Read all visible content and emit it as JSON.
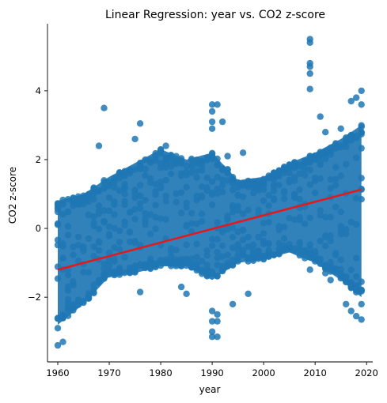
{
  "chart_data": {
    "type": "scatter",
    "title": "Linear Regression: year vs. CO2 z-score",
    "xlabel": "year",
    "ylabel": "CO2 z-score",
    "xlim": [
      1958.0,
      2021.2
    ],
    "ylim": [
      -3.88,
      5.95
    ],
    "xticks": [
      1960,
      1970,
      1980,
      1990,
      2000,
      2010,
      2020
    ],
    "yticks": [
      -2,
      0,
      2,
      4
    ],
    "xticklabels": [
      "1960",
      "1970",
      "1980",
      "1990",
      "2000",
      "2010",
      "2020"
    ],
    "yticklabels": [
      "−2",
      "0",
      "2",
      "4"
    ],
    "grid": false,
    "series": [
      {
        "kind": "scatter",
        "color": "#1f77b4",
        "note_points": "dense scatter, one column of points per year 1960-2019",
        "band_by_year": [
          {
            "x": 1960,
            "low": -2.8,
            "high": 0.8
          },
          {
            "x": 1965,
            "low": -2.2,
            "high": 1.0
          },
          {
            "x": 1970,
            "low": -1.4,
            "high": 1.5
          },
          {
            "x": 1975,
            "low": -1.3,
            "high": 1.9
          },
          {
            "x": 1980,
            "low": -1.1,
            "high": 2.3
          },
          {
            "x": 1985,
            "low": -1.1,
            "high": 2.0
          },
          {
            "x": 1990,
            "low": -1.5,
            "high": 2.2
          },
          {
            "x": 1995,
            "low": -1.0,
            "high": 1.4
          },
          {
            "x": 2000,
            "low": -0.9,
            "high": 1.5
          },
          {
            "x": 2005,
            "low": -0.7,
            "high": 1.9
          },
          {
            "x": 2010,
            "low": -1.0,
            "high": 2.2
          },
          {
            "x": 2015,
            "low": -1.5,
            "high": 2.6
          },
          {
            "x": 2019,
            "low": -2.0,
            "high": 3.0
          }
        ],
        "outliers": [
          {
            "x": 1960,
            "y": -3.4
          },
          {
            "x": 1961,
            "y": -3.3
          },
          {
            "x": 1960,
            "y": -2.9
          },
          {
            "x": 1969,
            "y": 3.5
          },
          {
            "x": 1968,
            "y": 2.4
          },
          {
            "x": 1976,
            "y": 3.05
          },
          {
            "x": 1975,
            "y": 2.6
          },
          {
            "x": 1981,
            "y": 2.4
          },
          {
            "x": 1976,
            "y": -1.85
          },
          {
            "x": 1984,
            "y": -1.7
          },
          {
            "x": 1985,
            "y": -1.9
          },
          {
            "x": 1990,
            "y": 3.6
          },
          {
            "x": 1991,
            "y": 3.6
          },
          {
            "x": 1990,
            "y": 3.4
          },
          {
            "x": 1990,
            "y": 3.1
          },
          {
            "x": 1990,
            "y": 2.9
          },
          {
            "x": 1992,
            "y": 3.1
          },
          {
            "x": 1993,
            "y": 2.1
          },
          {
            "x": 1990,
            "y": -2.4
          },
          {
            "x": 1990,
            "y": -2.7
          },
          {
            "x": 1990,
            "y": -3.0
          },
          {
            "x": 1990,
            "y": -3.15
          },
          {
            "x": 1991,
            "y": -2.7
          },
          {
            "x": 1991,
            "y": -3.15
          },
          {
            "x": 1991,
            "y": -2.5
          },
          {
            "x": 1994,
            "y": -2.2
          },
          {
            "x": 1997,
            "y": -1.9
          },
          {
            "x": 1996,
            "y": 2.2
          },
          {
            "x": 2009,
            "y": 5.5
          },
          {
            "x": 2009,
            "y": 5.4
          },
          {
            "x": 2009,
            "y": 4.8
          },
          {
            "x": 2009,
            "y": 4.7
          },
          {
            "x": 2009,
            "y": 4.5
          },
          {
            "x": 2009,
            "y": 4.05
          },
          {
            "x": 2011,
            "y": 3.25
          },
          {
            "x": 2012,
            "y": 2.8
          },
          {
            "x": 2009,
            "y": -1.2
          },
          {
            "x": 2012,
            "y": -1.3
          },
          {
            "x": 2013,
            "y": -1.5
          },
          {
            "x": 2016,
            "y": -2.2
          },
          {
            "x": 2017,
            "y": -2.4
          },
          {
            "x": 2018,
            "y": -2.55
          },
          {
            "x": 2019,
            "y": -2.65
          },
          {
            "x": 2019,
            "y": -2.2
          },
          {
            "x": 2017,
            "y": 3.7
          },
          {
            "x": 2018,
            "y": 3.8
          },
          {
            "x": 2019,
            "y": 4.0
          },
          {
            "x": 2019,
            "y": 3.6
          },
          {
            "x": 2015,
            "y": 2.9
          }
        ]
      },
      {
        "kind": "regression-line",
        "color": "#e31a1c",
        "x": [
          1960,
          2019
        ],
        "y": [
          -1.2,
          1.13
        ]
      }
    ]
  }
}
